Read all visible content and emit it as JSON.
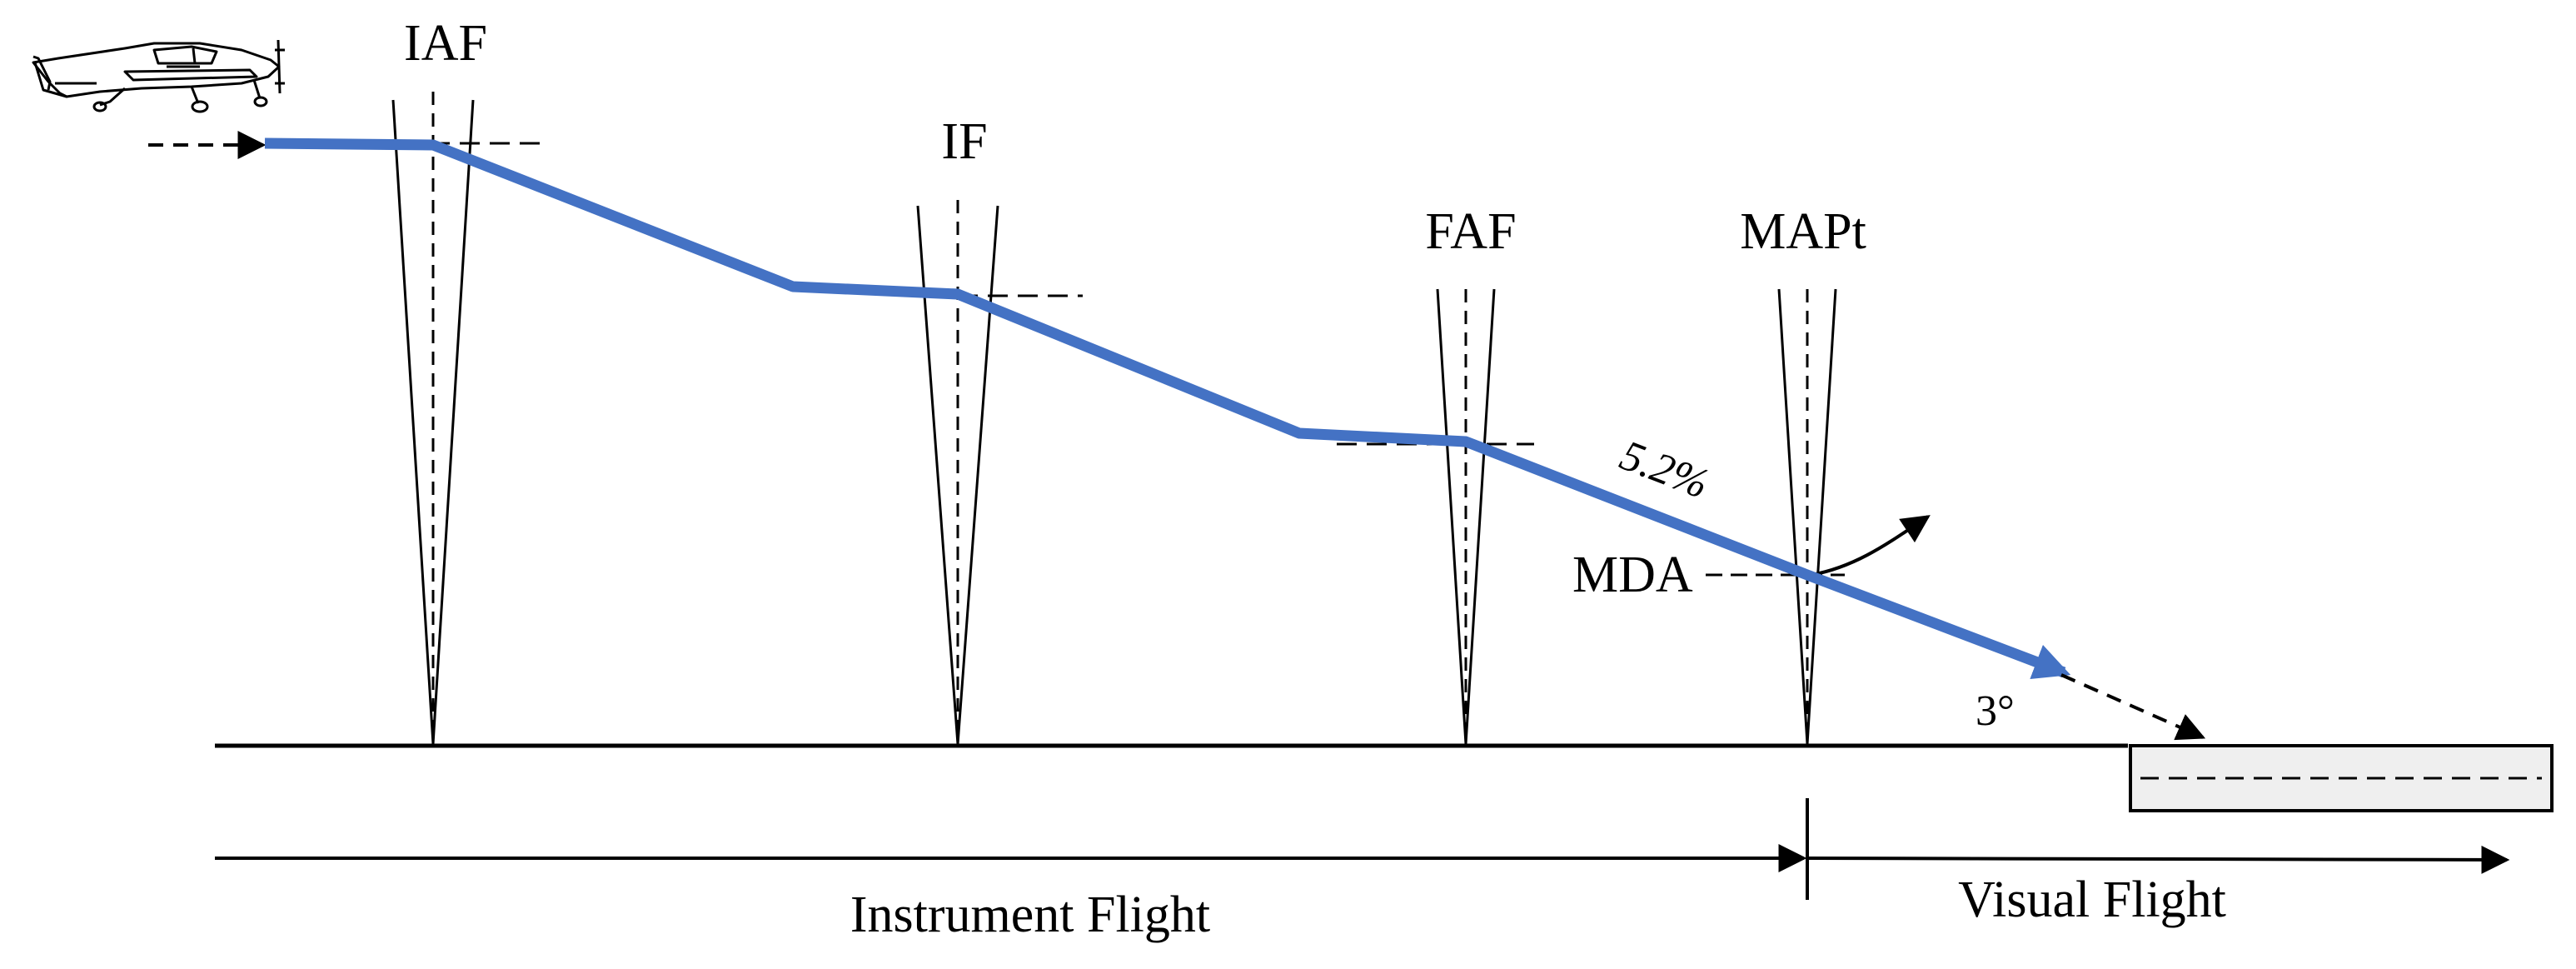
{
  "fixes": [
    {
      "id": "iaf",
      "label": "IAF"
    },
    {
      "id": "if",
      "label": "IF"
    },
    {
      "id": "faf",
      "label": "FAF"
    },
    {
      "id": "mapt",
      "label": "MAPt"
    }
  ],
  "annotations": {
    "gradient": "5.2%",
    "mda": "MDA",
    "glide_angle": "3°"
  },
  "phases": {
    "instrument": "Instrument Flight",
    "visual": "Visual Flight"
  },
  "colors": {
    "path": "#4472C4",
    "line": "#000000",
    "runway_fill": "#EFEFEF"
  },
  "icons": {
    "aircraft": "airplane-icon"
  }
}
